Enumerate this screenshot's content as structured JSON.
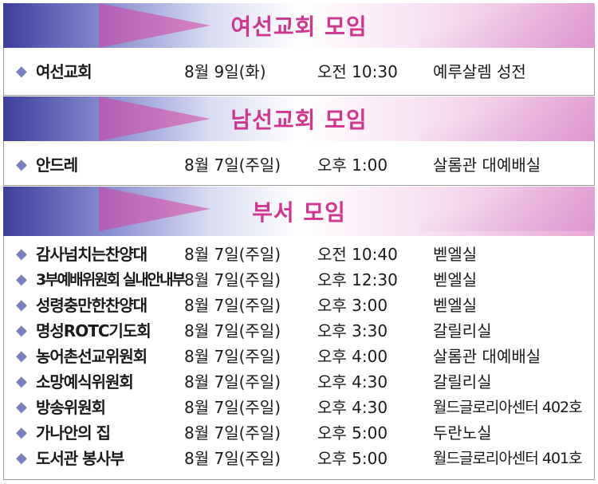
{
  "sections": [
    {
      "title": "여선교회 모임",
      "rows": [
        {
          "name": "여선교회",
          "date": "8월 9일(화)",
          "time": "오전 10:30",
          "place": "예루살렘 성전"
        }
      ]
    },
    {
      "title": "남선교회 모임",
      "rows": [
        {
          "name": "안드레",
          "date": "8월 7일(주일)",
          "time": "오후 1:00",
          "place": "살롬관 대예배실"
        }
      ]
    },
    {
      "title": "부서 모임",
      "rows": [
        {
          "name": "감사넘치는찬양대",
          "date": "8월 7일(주일)",
          "time": "오전 10:40",
          "place": "벧엘실"
        },
        {
          "name": "3부예배위원회 실내안내부",
          "date": "8월 7일(주일)",
          "time": "오후 12:30",
          "place": "벧엘실"
        },
        {
          "name": "성령충만한찬양대",
          "date": "8월 7일(주일)",
          "time": "오후 3:00",
          "place": "벧엘실"
        },
        {
          "name": "명성ROTC기도회",
          "date": "8월 7일(주일)",
          "time": "오후 3:30",
          "place": "갈릴리실"
        },
        {
          "name": "농어촌선교위원회",
          "date": "8월 7일(주일)",
          "time": "오후 4:00",
          "place": "살롬관 대예배실"
        },
        {
          "name": "소망예식위원회",
          "date": "8월 7일(주일)",
          "time": "오후 4:30",
          "place": "갈릴리실"
        },
        {
          "name": "방송위원회",
          "date": "8월 7일(주일)",
          "time": "오후 4:30",
          "place": "월드글로리아센터 402호"
        },
        {
          "name": "가나안의 집",
          "date": "8월 7일(주일)",
          "time": "오후 5:00",
          "place": "두란노실"
        },
        {
          "name": "도서관 봉사부",
          "date": "8월 7일(주일)",
          "time": "오후 5:00",
          "place": "월드글로리아센터 401호"
        }
      ]
    }
  ],
  "icons": {
    "bullet": "diamond-bullet-icon"
  },
  "colors": {
    "title": "#d0368f",
    "bullet": "#7a7fc4",
    "header_dark": "#3d3f9c",
    "header_pink": "#e9a8d6"
  }
}
